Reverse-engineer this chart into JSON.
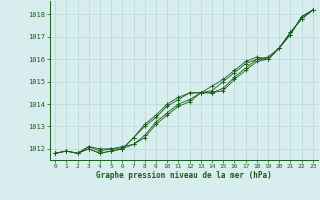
{
  "x": [
    0,
    1,
    2,
    3,
    4,
    5,
    6,
    7,
    8,
    9,
    10,
    11,
    12,
    13,
    14,
    15,
    16,
    17,
    18,
    19,
    20,
    21,
    22,
    23
  ],
  "line1": [
    1011.8,
    1011.9,
    1011.8,
    1012.0,
    1011.8,
    1011.9,
    1012.0,
    1012.2,
    1012.5,
    1013.1,
    1013.5,
    1013.9,
    1014.1,
    1014.5,
    1014.5,
    1014.6,
    1015.1,
    1015.5,
    1015.9,
    1016.0,
    1016.5,
    1017.1,
    1017.9,
    1018.2
  ],
  "line2": [
    1011.8,
    1011.9,
    1011.8,
    1012.1,
    1011.9,
    1012.0,
    1012.1,
    1012.2,
    1012.6,
    1013.2,
    1013.6,
    1014.0,
    1014.2,
    1014.5,
    1014.5,
    1014.7,
    1015.2,
    1015.6,
    1016.0,
    1016.0,
    1016.5,
    1017.1,
    1017.9,
    1018.2
  ],
  "line3": [
    1011.8,
    1011.9,
    1011.8,
    1012.1,
    1012.0,
    1012.0,
    1012.0,
    1012.5,
    1013.0,
    1013.4,
    1013.9,
    1014.2,
    1014.5,
    1014.5,
    1014.6,
    1015.0,
    1015.4,
    1015.8,
    1016.0,
    1016.1,
    1016.5,
    1017.2,
    1017.8,
    1018.2
  ],
  "line4": [
    1011.8,
    1011.9,
    1011.8,
    1012.0,
    1011.8,
    1011.9,
    1012.0,
    1012.5,
    1013.1,
    1013.5,
    1014.0,
    1014.3,
    1014.5,
    1014.5,
    1014.8,
    1015.1,
    1015.5,
    1015.9,
    1016.1,
    1016.0,
    1016.5,
    1017.2,
    1017.8,
    1018.2
  ],
  "bg_color": "#d8eeee",
  "grid_color": "#b8d8d8",
  "line_color": "#1a5c1a",
  "marker": "+",
  "ylabel_values": [
    1012,
    1013,
    1014,
    1015,
    1016,
    1017,
    1018
  ],
  "xlabel_label": "Graphe pression niveau de la mer (hPa)",
  "ylim": [
    1011.5,
    1018.6
  ],
  "xlim": [
    -0.5,
    23.5
  ]
}
